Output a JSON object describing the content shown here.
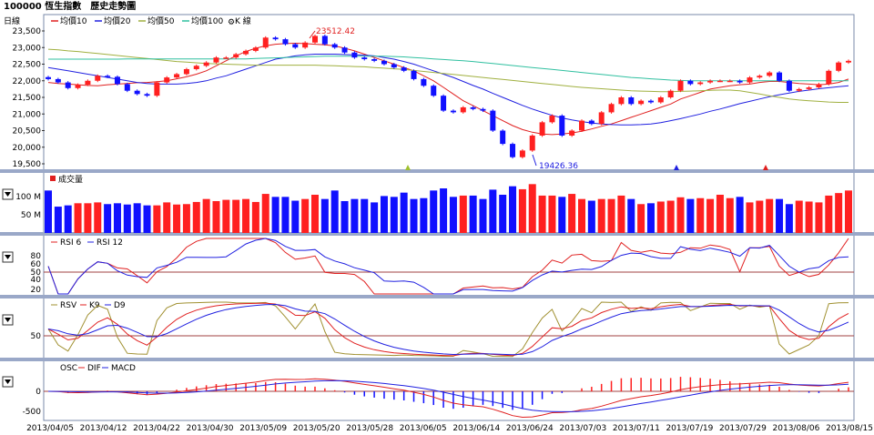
{
  "window": {
    "title": "100000 恆生指數　歷史走勢圖"
  },
  "main_panel": {
    "name": "日線",
    "legend": [
      "均價10",
      "均價20",
      "均價50",
      "均價100",
      "K 線"
    ],
    "legend_colors": [
      "#e02020",
      "#2020e0",
      "#a0b040",
      "#30c0a0",
      "#000000"
    ],
    "y_ticks": [
      "23,500",
      "23,000",
      "22,500",
      "22,000",
      "21,500",
      "21,000",
      "20,500",
      "20,000",
      "19,500"
    ],
    "high_label": "23512.42",
    "low_label": "19426.36"
  },
  "volume_panel": {
    "legend": [
      "成交量"
    ],
    "y_ticks": [
      "100 M",
      "50 M"
    ],
    "menu_icon": "dropdown-arrow-icon"
  },
  "rsi_panel": {
    "legend": [
      "RSI 6",
      "RSI 12"
    ],
    "y_ticks": [
      "80",
      "60",
      "50",
      "40",
      "20"
    ],
    "menu_icon": "dropdown-arrow-icon"
  },
  "kd_panel": {
    "legend": [
      "RSV",
      "K9",
      "D9"
    ],
    "y_ticks": [
      "50"
    ],
    "menu_icon": "dropdown-arrow-icon"
  },
  "macd_panel": {
    "legend": [
      "OSC",
      "DIF",
      "MACD"
    ],
    "y_ticks": [
      "0",
      "-500"
    ],
    "menu_icon": "dropdown-arrow-icon"
  },
  "x_axis": {
    "labels": [
      "2013/04/05",
      "2013/04/12",
      "2013/04/22",
      "2013/04/30",
      "2013/05/09",
      "2013/05/20",
      "2013/05/28",
      "2013/06/05",
      "2013/06/14",
      "2013/06/24",
      "2013/07/03",
      "2013/07/11",
      "2013/07/19",
      "2013/07/29",
      "2013/08/06",
      "2013/08/15"
    ]
  },
  "chart_data": {
    "type": "line",
    "title": "",
    "candles_close": [
      22050,
      21950,
      21780,
      21880,
      22000,
      22150,
      22120,
      21900,
      21700,
      21600,
      21550,
      21950,
      22100,
      22200,
      22350,
      22450,
      22550,
      22700,
      22700,
      22800,
      22900,
      23000,
      23300,
      23250,
      23100,
      23000,
      23150,
      23350,
      23100,
      23000,
      22850,
      22700,
      22650,
      22600,
      22500,
      22400,
      22300,
      22050,
      21850,
      21550,
      21100,
      21050,
      21200,
      21150,
      21100,
      20500,
      20100,
      19700,
      19900,
      20350,
      20750,
      20950,
      20350,
      20500,
      20800,
      20700,
      21050,
      21300,
      21500,
      21300,
      21400,
      21350,
      21500,
      21700,
      22000,
      21900,
      21950,
      22000,
      22000,
      22000,
      21950,
      22100,
      22150,
      22250,
      22000,
      21700,
      21750,
      21800,
      21900,
      22300,
      22550,
      22600
    ],
    "volume": [
      100,
      62,
      65,
      70,
      70,
      72,
      68,
      70,
      67,
      70,
      65,
      65,
      72,
      67,
      68,
      73,
      80,
      75,
      78,
      78,
      80,
      73,
      92,
      85,
      85,
      76,
      80,
      90,
      80,
      100,
      75,
      80,
      80,
      72,
      87,
      85,
      95,
      80,
      82,
      100,
      105,
      85,
      88,
      88,
      80,
      102,
      90,
      110,
      103,
      115,
      88,
      88,
      85,
      92,
      80,
      76,
      80,
      80,
      88,
      80,
      68,
      70,
      74,
      76,
      84,
      80,
      82,
      80,
      90,
      82,
      85,
      72,
      76,
      80,
      80,
      68,
      76,
      74,
      72,
      88,
      94,
      100
    ],
    "series": [
      {
        "name": "均價10",
        "values": [
          21950,
          21920,
          21900,
          21880,
          21860,
          21850,
          21880,
          21900,
          21920,
          21940,
          21950,
          21970,
          22000,
          22060,
          22120,
          22200,
          22300,
          22450,
          22600,
          22750,
          22880,
          22980,
          23050,
          23100,
          23120,
          23130,
          23120,
          23100,
          23080,
          23050,
          22980,
          22900,
          22800,
          22700,
          22600,
          22500,
          22400,
          22300,
          22150,
          22000,
          21800,
          21600,
          21400,
          21250,
          21100,
          20950,
          20800,
          20650,
          20530,
          20450,
          20400,
          20380,
          20400,
          20430,
          20480,
          20550,
          20630,
          20700,
          20800,
          20900,
          21000,
          21100,
          21200,
          21300,
          21450,
          21550,
          21650,
          21750,
          21800,
          21850,
          21880,
          21900,
          21950,
          21980,
          21980,
          21950,
          21920,
          21900,
          21880,
          21900,
          21950,
          22050
        ]
      },
      {
        "name": "均價20",
        "values": [
          22400,
          22350,
          22300,
          22250,
          22200,
          22150,
          22100,
          22050,
          22000,
          21950,
          21920,
          21900,
          21900,
          21900,
          21920,
          21950,
          22000,
          22080,
          22150,
          22250,
          22350,
          22450,
          22550,
          22650,
          22700,
          22750,
          22780,
          22800,
          22800,
          22800,
          22790,
          22780,
          22770,
          22750,
          22700,
          22650,
          22580,
          22500,
          22400,
          22300,
          22200,
          22100,
          21980,
          21860,
          21750,
          21620,
          21500,
          21380,
          21260,
          21150,
          21050,
          20960,
          20880,
          20820,
          20770,
          20730,
          20700,
          20680,
          20670,
          20670,
          20680,
          20700,
          20740,
          20800,
          20860,
          20930,
          21000,
          21080,
          21150,
          21230,
          21310,
          21380,
          21450,
          21520,
          21580,
          21630,
          21680,
          21720,
          21760,
          21790,
          21820,
          21850
        ]
      },
      {
        "name": "均價50",
        "values": [
          22950,
          22930,
          22900,
          22880,
          22850,
          22820,
          22790,
          22760,
          22730,
          22700,
          22670,
          22640,
          22610,
          22580,
          22560,
          22540,
          22520,
          22510,
          22500,
          22490,
          22480,
          22470,
          22470,
          22470,
          22470,
          22470,
          22470,
          22470,
          22460,
          22450,
          22440,
          22430,
          22420,
          22400,
          22380,
          22360,
          22340,
          22310,
          22280,
          22250,
          22220,
          22190,
          22160,
          22130,
          22100,
          22070,
          22040,
          22010,
          21980,
          21950,
          21920,
          21890,
          21860,
          21830,
          21800,
          21780,
          21760,
          21740,
          21720,
          21700,
          21690,
          21680,
          21670,
          21670,
          21680,
          21690,
          21700,
          21710,
          21720,
          21720,
          21700,
          21650,
          21600,
          21550,
          21500,
          21450,
          21420,
          21400,
          21380,
          21360,
          21350,
          21350
        ]
      },
      {
        "name": "均價100",
        "values": [
          22650,
          22650,
          22650,
          22650,
          22650,
          22650,
          22650,
          22650,
          22660,
          22660,
          22660,
          22660,
          22660,
          22660,
          22660,
          22660,
          22660,
          22660,
          22660,
          22660,
          22660,
          22670,
          22680,
          22690,
          22700,
          22710,
          22720,
          22730,
          22740,
          22740,
          22740,
          22740,
          22740,
          22740,
          22740,
          22730,
          22720,
          22700,
          22680,
          22660,
          22640,
          22620,
          22600,
          22580,
          22550,
          22520,
          22490,
          22460,
          22430,
          22400,
          22370,
          22340,
          22310,
          22280,
          22250,
          22220,
          22190,
          22160,
          22130,
          22100,
          22080,
          22060,
          22040,
          22020,
          22010,
          22000,
          22000,
          22000,
          22000,
          22000,
          22000,
          22000,
          22000,
          22000,
          22000,
          22000,
          22000,
          22000,
          22000,
          22000,
          22000,
          22000
        ]
      }
    ],
    "ylim": [
      19200,
      23700
    ]
  }
}
